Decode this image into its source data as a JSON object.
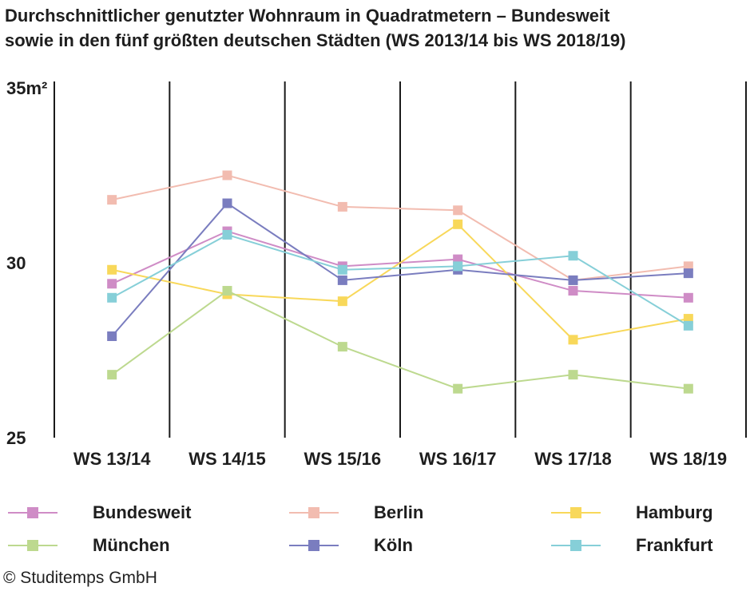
{
  "title": {
    "line1": "Durchschnittlicher genutzter Wohnraum in Quadratmetern – Bundesweit",
    "line2": "sowie in den fünf größten deutschen Städten (WS 2013/14 bis WS 2018/19)"
  },
  "copyright": "© Studitemps GmbH",
  "chart_data": {
    "type": "line",
    "title": "Durchschnittlicher genutzter Wohnraum in Quadratmetern – Bundesweit sowie in den fünf größten deutschen Städten (WS 2013/14 bis WS 2018/19)",
    "xlabel": "",
    "ylabel": "",
    "ylim": [
      25,
      35
    ],
    "yticks": [
      {
        "value": 35,
        "label": "35m²"
      },
      {
        "value": 30,
        "label": "30"
      },
      {
        "value": 25,
        "label": "25"
      }
    ],
    "categories": [
      "WS 13/14",
      "WS 14/15",
      "WS 15/16",
      "WS 16/17",
      "WS 17/18",
      "WS 18/19"
    ],
    "legend_position": "bottom",
    "series": [
      {
        "name": "Bundesweit",
        "color": "#cf8cc6",
        "values": [
          29.4,
          30.9,
          29.9,
          30.1,
          29.2,
          29.0
        ]
      },
      {
        "name": "Berlin",
        "color": "#f2bcb0",
        "values": [
          31.8,
          32.5,
          31.6,
          31.5,
          29.5,
          29.9
        ]
      },
      {
        "name": "Hamburg",
        "color": "#f8d85a",
        "values": [
          29.8,
          29.1,
          28.9,
          31.1,
          27.8,
          28.4
        ]
      },
      {
        "name": "München",
        "color": "#bdd98f",
        "values": [
          26.8,
          29.2,
          27.6,
          26.4,
          26.8,
          26.4
        ]
      },
      {
        "name": "Köln",
        "color": "#7a7dbf",
        "values": [
          27.9,
          31.7,
          29.5,
          29.8,
          29.5,
          29.7
        ]
      },
      {
        "name": "Frankfurt",
        "color": "#86cfd8",
        "values": [
          29.0,
          30.8,
          29.8,
          29.9,
          30.2,
          28.2
        ]
      }
    ]
  }
}
